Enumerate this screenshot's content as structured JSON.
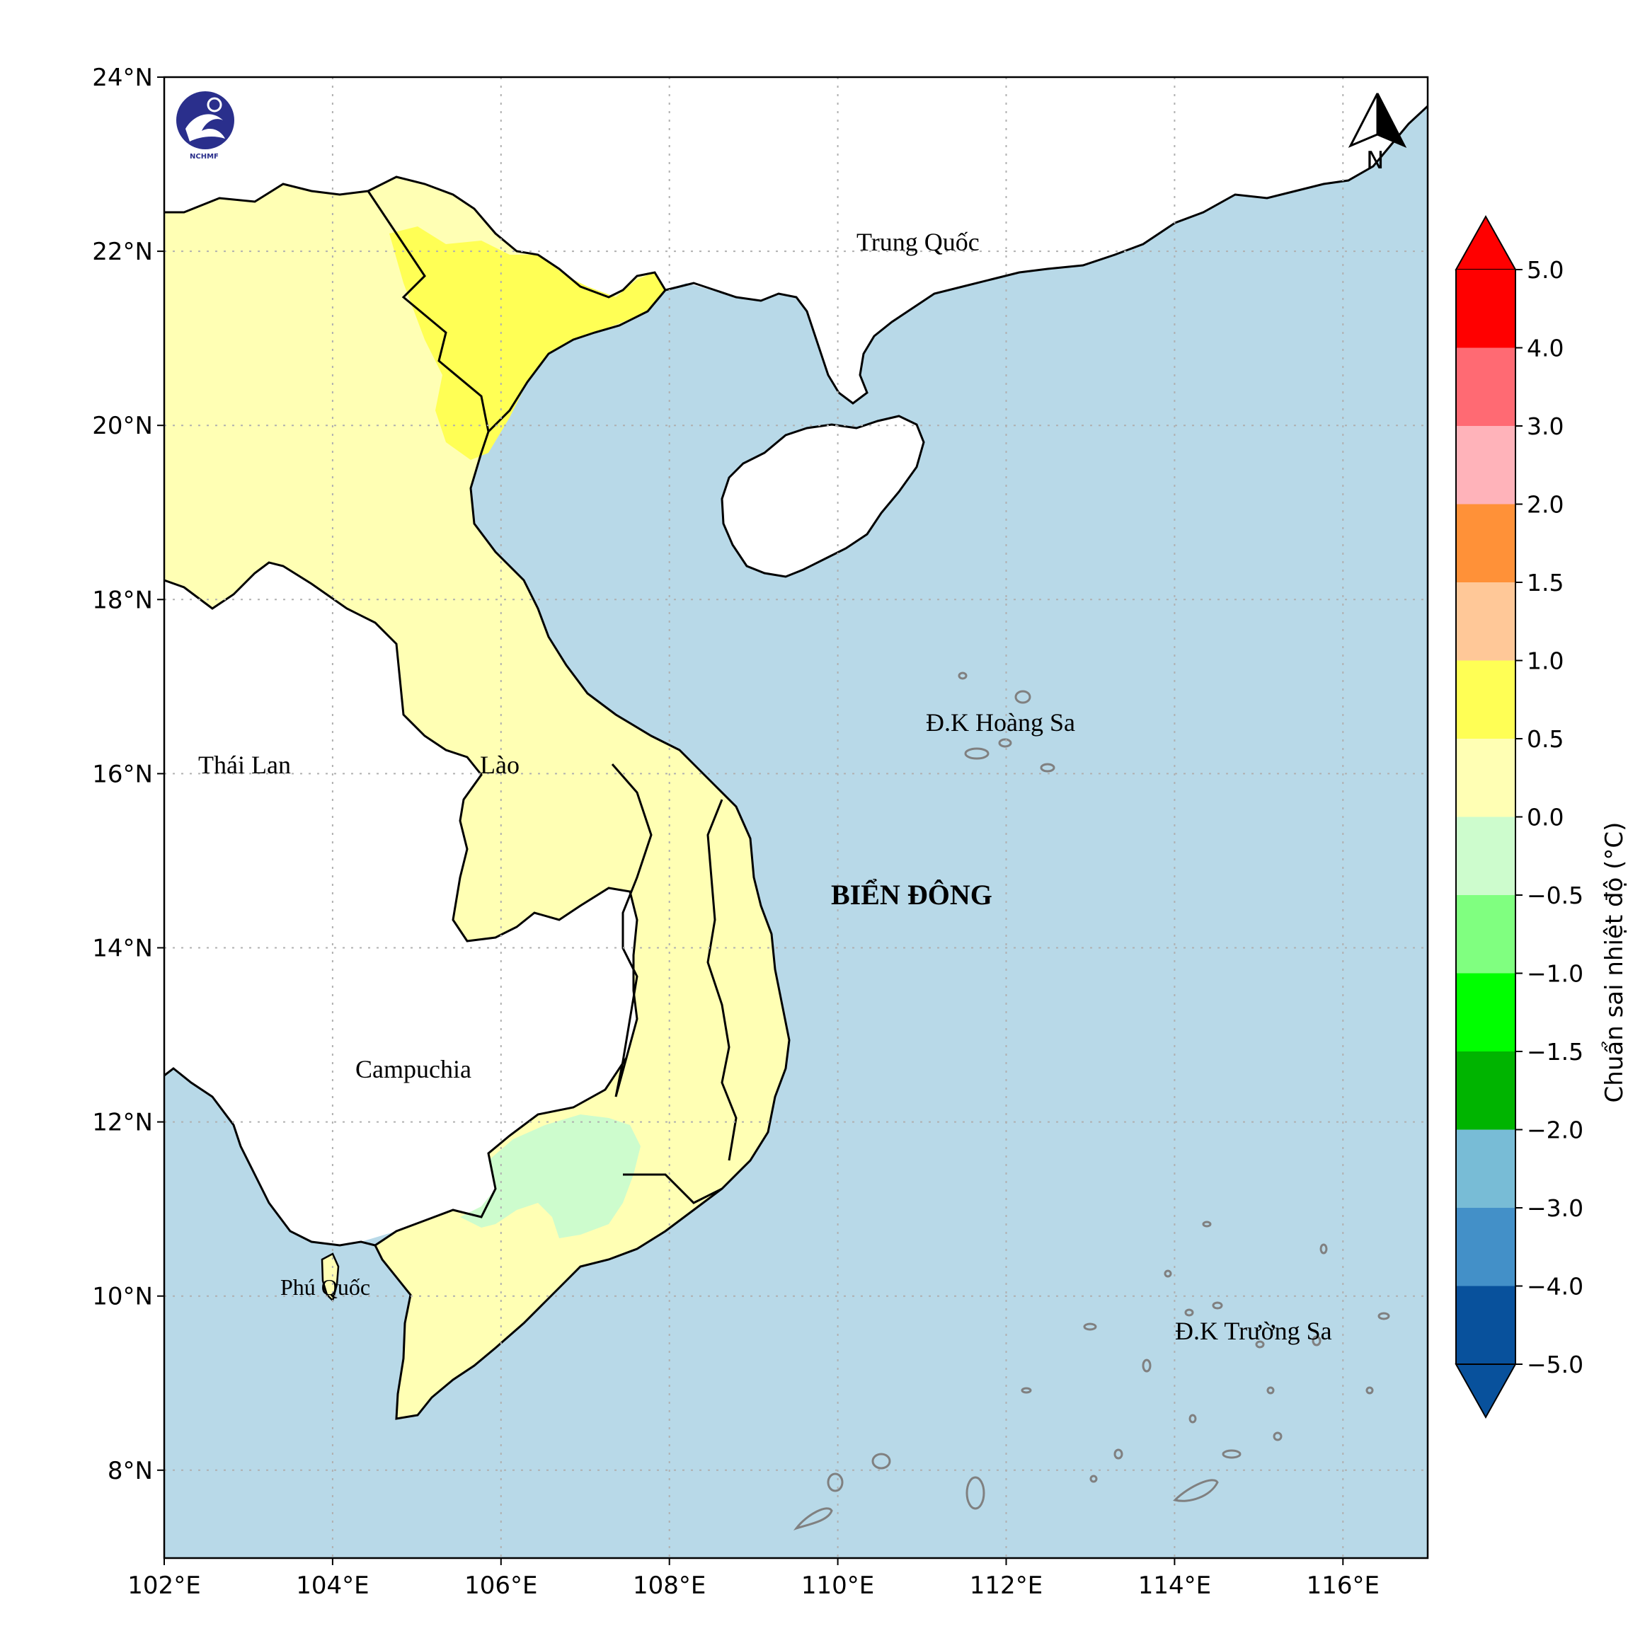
{
  "map": {
    "colors": {
      "sea": "#b8d9e8",
      "land_blank": "#ffffff",
      "anomaly_0_05": "#ffffb4",
      "anomaly_05_1": "#ffff55",
      "anomaly_neg05_0": "#cdfccd",
      "border": "#000000",
      "reef": "#808080",
      "grid": "#b0b0b0"
    },
    "lon_ticks": [
      "102°E",
      "104°E",
      "106°E",
      "108°E",
      "110°E",
      "112°E",
      "114°E",
      "116°E"
    ],
    "lat_ticks": [
      "24°N",
      "22°N",
      "20°N",
      "18°N",
      "16°N",
      "14°N",
      "12°N",
      "10°N",
      "8°N"
    ],
    "labels": {
      "china": "Trung Quốc",
      "thailand": "Thái Lan",
      "laos": "Lào",
      "cambodia": "Campuchia",
      "phu_quoc": "Phú Quốc",
      "sea": "BIỂN ĐÔNG",
      "hoang_sa": "Đ.K Hoàng Sa",
      "truong_sa": "Đ.K Trường Sa"
    },
    "north_arrow_letter": "N",
    "logo_text": "NCHMF"
  },
  "colorbar": {
    "title": "Chuẩn sai nhiệt độ (°C)",
    "ticks": [
      "5.0",
      "4.0",
      "3.0",
      "2.0",
      "1.5",
      "1.0",
      "0.5",
      "0.0",
      "−0.5",
      "−1.0",
      "−1.5",
      "−2.0",
      "−3.0",
      "−4.0",
      "−5.0"
    ],
    "colors_top_to_bottom": [
      "#ff0000",
      "#ff6a73",
      "#ffb3ba",
      "#ff9138",
      "#ffc898",
      "#ffff55",
      "#ffffb4",
      "#cdfccd",
      "#80ff80",
      "#00ff00",
      "#00b400",
      "#78bcd6",
      "#4390c8",
      "#08519c"
    ],
    "extend_max_color": "#ff0000",
    "extend_min_color": "#08519c"
  }
}
